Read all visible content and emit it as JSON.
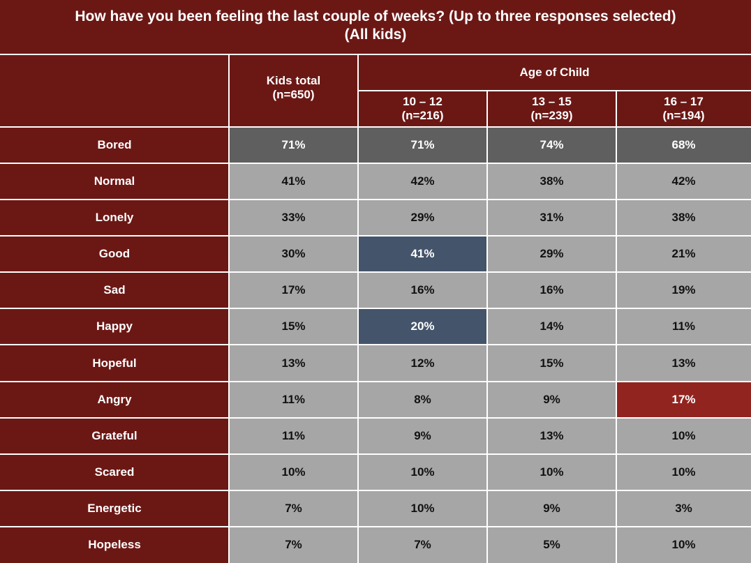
{
  "chart_data": {
    "type": "table",
    "title": "How have you been feeling the last couple of weeks? (Up to three responses selected)",
    "subtitle": "(All kids)",
    "group_header": "Age of Child",
    "columns": [
      {
        "label": "Kids total",
        "n": "(n=650)"
      },
      {
        "label": "10 – 12",
        "n": "(n=216)"
      },
      {
        "label": "13 – 15",
        "n": "(n=239)"
      },
      {
        "label": "16 – 17",
        "n": "(n=194)"
      }
    ],
    "rows": [
      {
        "label": "Bored",
        "values": [
          "71%",
          "71%",
          "74%",
          "68%"
        ],
        "highlight": [
          "dark",
          "dark",
          "dark",
          "dark"
        ]
      },
      {
        "label": "Normal",
        "values": [
          "41%",
          "42%",
          "38%",
          "42%"
        ],
        "highlight": [
          "",
          "",
          "",
          ""
        ]
      },
      {
        "label": "Lonely",
        "values": [
          "33%",
          "29%",
          "31%",
          "38%"
        ],
        "highlight": [
          "",
          "",
          "",
          ""
        ]
      },
      {
        "label": "Good",
        "values": [
          "30%",
          "41%",
          "29%",
          "21%"
        ],
        "highlight": [
          "",
          "blue",
          "",
          ""
        ]
      },
      {
        "label": "Sad",
        "values": [
          "17%",
          "16%",
          "16%",
          "19%"
        ],
        "highlight": [
          "",
          "",
          "",
          ""
        ]
      },
      {
        "label": "Happy",
        "values": [
          "15%",
          "20%",
          "14%",
          "11%"
        ],
        "highlight": [
          "",
          "blue",
          "",
          ""
        ]
      },
      {
        "label": "Hopeful",
        "values": [
          "13%",
          "12%",
          "15%",
          "13%"
        ],
        "highlight": [
          "",
          "",
          "",
          ""
        ]
      },
      {
        "label": "Angry",
        "values": [
          "11%",
          "8%",
          "9%",
          "17%"
        ],
        "highlight": [
          "",
          "",
          "",
          "red"
        ]
      },
      {
        "label": "Grateful",
        "values": [
          "11%",
          "9%",
          "13%",
          "10%"
        ],
        "highlight": [
          "",
          "",
          "",
          ""
        ]
      },
      {
        "label": "Scared",
        "values": [
          "10%",
          "10%",
          "10%",
          "10%"
        ],
        "highlight": [
          "",
          "",
          "",
          ""
        ]
      },
      {
        "label": "Energetic",
        "values": [
          "7%",
          "10%",
          "9%",
          "3%"
        ],
        "highlight": [
          "",
          "",
          "",
          ""
        ]
      },
      {
        "label": "Hopeless",
        "values": [
          "7%",
          "7%",
          "5%",
          "10%"
        ],
        "highlight": [
          "",
          "",
          "",
          ""
        ]
      }
    ]
  },
  "colors": {
    "header_bg": "#6b1815",
    "value_bg": "#a6a6a6",
    "dark": "#5f5f5f",
    "blue": "#44546a",
    "red": "#922420"
  }
}
